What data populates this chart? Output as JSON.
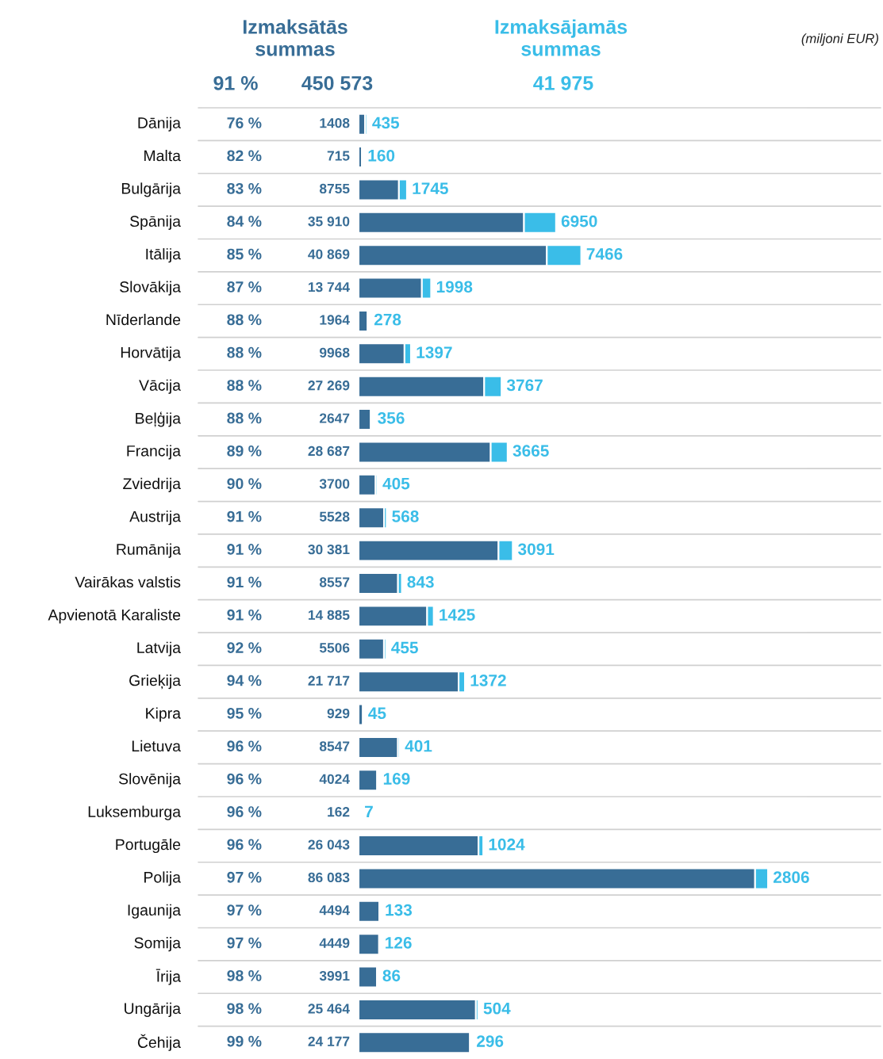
{
  "chart_data": {
    "type": "bar",
    "orientation": "horizontal",
    "stacked": true,
    "grid": "y",
    "legend": false,
    "categories": [
      "Dānija",
      "Malta",
      "Bulgārija",
      "Spānija",
      "Itālija",
      "Slovākija",
      "Nīderlande",
      "Horvātija",
      "Vācija",
      "Beļģija",
      "Francija",
      "Zviedrija",
      "Austrija",
      "Rumānija",
      "Vairākas valstis",
      "Apvienotā Karaliste",
      "Latvija",
      "Grieķija",
      "Kipra",
      "Lietuva",
      "Slovēnija",
      "Luksemburga",
      "Portugāle",
      "Polija",
      "Igaunija",
      "Somija",
      "Īrija",
      "Ungārija",
      "Čehija"
    ],
    "series": [
      {
        "name": "Izmaksātās summas",
        "color": "#386d96",
        "values": [
          1408,
          715,
          8755,
          35910,
          40869,
          13744,
          1964,
          9968,
          27269,
          2647,
          28687,
          3700,
          5528,
          30381,
          8557,
          14885,
          5506,
          21717,
          929,
          8547,
          4024,
          162,
          26043,
          86083,
          4494,
          4449,
          3991,
          25464,
          24177
        ],
        "value_labels": [
          "1408",
          "715",
          "8755",
          "35 910",
          "40 869",
          "13 744",
          "1964",
          "9968",
          "27 269",
          "2647",
          "28 687",
          "3700",
          "5528",
          "30 381",
          "8557",
          "14 885",
          "5506",
          "21 717",
          "929",
          "8547",
          "4024",
          "162",
          "26 043",
          "86 083",
          "4494",
          "4449",
          "3991",
          "25 464",
          "24 177"
        ]
      },
      {
        "name": "Izmaksājamās summas",
        "color": "#3abde8",
        "values": [
          435,
          160,
          1745,
          6950,
          7466,
          1998,
          278,
          1397,
          3767,
          356,
          3665,
          405,
          568,
          3091,
          843,
          1425,
          455,
          1372,
          45,
          401,
          169,
          7,
          1024,
          2806,
          133,
          126,
          86,
          504,
          296
        ],
        "value_labels": [
          "435",
          "160",
          "1745",
          "6950",
          "7466",
          "1998",
          "278",
          "1397",
          "3767",
          "356",
          "3665",
          "405",
          "568",
          "3091",
          "843",
          "1425",
          "455",
          "1372",
          "45",
          "401",
          "169",
          "7",
          "1024",
          "2806",
          "133",
          "126",
          "86",
          "504",
          "296"
        ]
      }
    ],
    "annotations": [
      "91 %",
      "450 573",
      "41 975",
      "(miljoni EUR)",
      "76 %",
      "82 %",
      "83 %",
      "84 %",
      "85 %",
      "87 %",
      "88 %",
      "88 %",
      "88 %",
      "88 %",
      "89 %",
      "90 %",
      "91 %",
      "91 %",
      "91 %",
      "91 %",
      "92 %",
      "94 %",
      "95 %",
      "96 %",
      "96 %",
      "96 %",
      "96 %",
      "97 %",
      "97 %",
      "97 %",
      "98 %",
      "98 %",
      "99 %"
    ]
  }
}
